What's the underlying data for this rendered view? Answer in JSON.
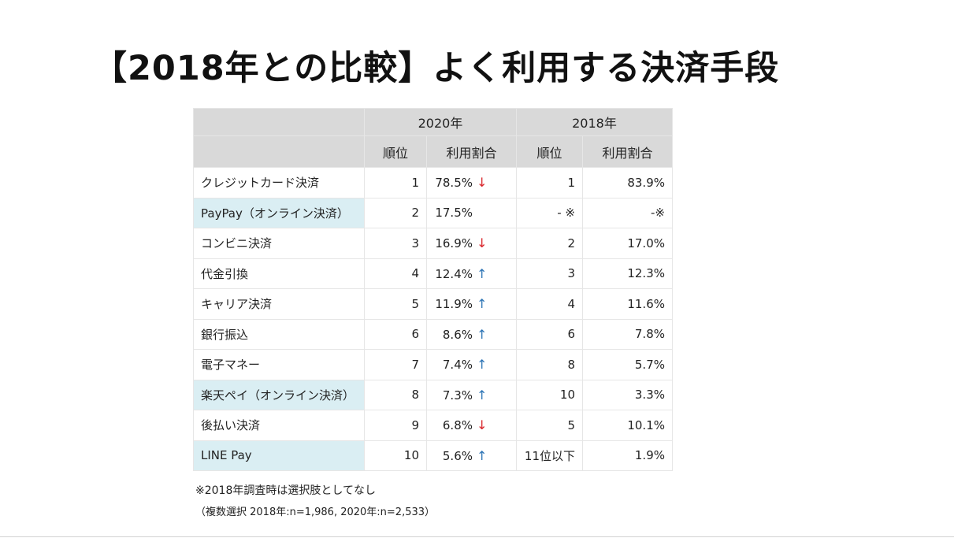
{
  "title": "【2018年との比較】よく利用する決済手段",
  "table": {
    "year_2020": "2020年",
    "year_2018": "2018年",
    "col_rank": "順位",
    "col_share": "利用割合",
    "rows": [
      {
        "name": "クレジットカード決済",
        "highlight": false,
        "rank_2020": "1",
        "share_2020": "78.5%",
        "trend": "↓",
        "trend_dir": "down",
        "rank_2018": "1",
        "share_2018": "83.9%"
      },
      {
        "name": "PayPay（オンライン決済）",
        "highlight": true,
        "rank_2020": "2",
        "share_2020": "17.5%",
        "trend": "",
        "trend_dir": "none",
        "rank_2018": "- ※",
        "share_2018": "-※"
      },
      {
        "name": "コンビニ決済",
        "highlight": false,
        "rank_2020": "3",
        "share_2020": "16.9%",
        "trend": "↓",
        "trend_dir": "down",
        "rank_2018": "2",
        "share_2018": "17.0%"
      },
      {
        "name": "代金引換",
        "highlight": false,
        "rank_2020": "4",
        "share_2020": "12.4%",
        "trend": "↑",
        "trend_dir": "up",
        "rank_2018": "3",
        "share_2018": "12.3%"
      },
      {
        "name": "キャリア決済",
        "highlight": false,
        "rank_2020": "5",
        "share_2020": "11.9%",
        "trend": "↑",
        "trend_dir": "up",
        "rank_2018": "4",
        "share_2018": "11.6%"
      },
      {
        "name": "銀行振込",
        "highlight": false,
        "rank_2020": "6",
        "share_2020": "8.6%",
        "trend": "↑",
        "trend_dir": "up",
        "rank_2018": "6",
        "share_2018": "7.8%"
      },
      {
        "name": "電子マネー",
        "highlight": false,
        "rank_2020": "7",
        "share_2020": "7.4%",
        "trend": "↑",
        "trend_dir": "up",
        "rank_2018": "8",
        "share_2018": "5.7%"
      },
      {
        "name": "楽天ペイ（オンライン決済）",
        "highlight": true,
        "rank_2020": "8",
        "share_2020": "7.3%",
        "trend": "↑",
        "trend_dir": "up",
        "rank_2018": "10",
        "share_2018": "3.3%"
      },
      {
        "name": "後払い決済",
        "highlight": false,
        "rank_2020": "9",
        "share_2020": "6.8%",
        "trend": "↓",
        "trend_dir": "down",
        "rank_2018": "5",
        "share_2018": "10.1%"
      },
      {
        "name": "LINE Pay",
        "highlight": true,
        "rank_2020": "10",
        "share_2020": "5.6%",
        "trend": "↑",
        "trend_dir": "up",
        "rank_2018": "11位以下",
        "share_2018": "1.9%"
      }
    ]
  },
  "notes": {
    "note1": "※2018年調査時は選択肢としてなし",
    "note2": "（複数選択 2018年:n=1,986, 2020年:n=2,533）"
  },
  "colors": {
    "header_bg": "#d9d9d9",
    "highlight_bg": "#daeef3",
    "arrow_down": "#d9262c",
    "arrow_up": "#2e75b6"
  }
}
